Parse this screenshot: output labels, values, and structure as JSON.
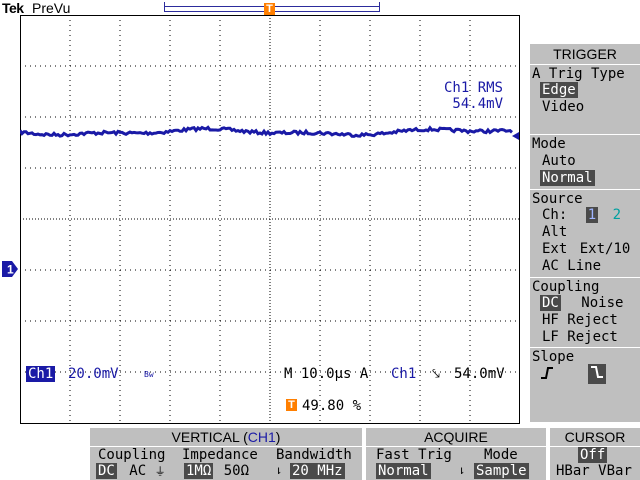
{
  "header": {
    "brand": "Tek",
    "mode": "PreVu"
  },
  "readouts": {
    "rms_label": "Ch1 RMS",
    "rms_value": "54.4mV",
    "ch1_badge": "Ch1",
    "ch1_scale": "20.0mV",
    "bw_mark": "Bw",
    "timebase": "M 10.0µs A",
    "trigger_source": "Ch1",
    "trigger_level": "54.0mV",
    "trigger_position": "49.80 %",
    "trigger_marker": "T",
    "channel_marker": "1"
  },
  "side_menu": {
    "title": "TRIGGER",
    "trig_type_label": "A Trig Type",
    "trig_type_options": [
      "Edge",
      "Video"
    ],
    "trig_type_selected": "Edge",
    "mode_label": "Mode",
    "mode_options": [
      "Auto",
      "Normal"
    ],
    "mode_selected": "Normal",
    "source_label": "Source",
    "source_ch_label": "Ch:",
    "source_ch_1": "1",
    "source_ch_2": "2",
    "source_alt": "Alt",
    "source_ext": "Ext",
    "source_ext10": "Ext/10",
    "source_acline": "AC Line",
    "coupling_label": "Coupling",
    "coupling_dc": "DC",
    "coupling_noise": "Noise",
    "coupling_hf": "HF Reject",
    "coupling_lf": "LF Reject",
    "slope_label": "Slope",
    "slope_rising": "⨍",
    "slope_falling": "⬎"
  },
  "bottom_bar": {
    "vertical_title": "VERTICAL (",
    "vertical_ch": "CH1",
    "vertical_title_end": ")",
    "coupling_label": "Coupling",
    "coupling_dc": "DC",
    "coupling_ac": "AC",
    "coupling_gnd": "⏚",
    "impedance_label": "Impedance",
    "impedance_1m": "1MΩ",
    "impedance_50": "50Ω",
    "bandwidth_label": "Bandwidth",
    "bandwidth_value": "20 MHz",
    "acquire_title": "ACQUIRE",
    "fast_trig_label": "Fast Trig",
    "fast_trig_value": "Normal",
    "acq_mode_label": "Mode",
    "acq_mode_value": "Sample",
    "cursor_title": "CURSOR",
    "cursor_off": "Off",
    "cursor_hbar": "HBar",
    "cursor_vbar": "VBar"
  },
  "colors": {
    "channel1": "#1a1aa6",
    "channel2": "#00a0a0",
    "trigger": "#ff7f00",
    "menu_bg": "#bfbfbf",
    "selected": "#4a4a4a"
  }
}
